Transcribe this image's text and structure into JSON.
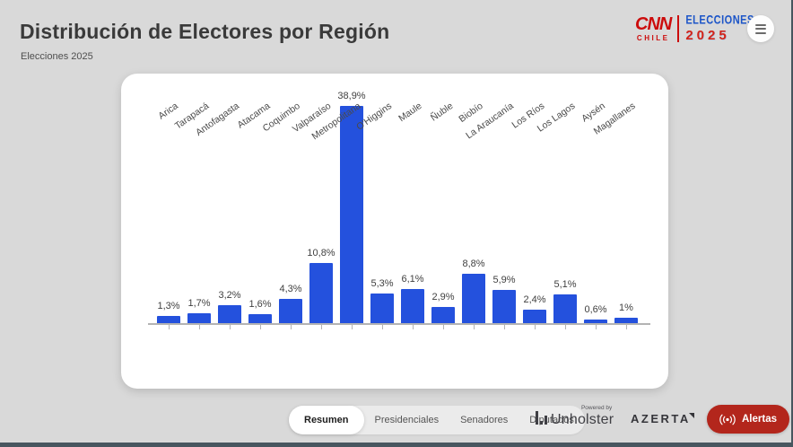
{
  "header": {
    "title": "Distribución de Electores por Región",
    "subtitle": "Elecciones 2025",
    "logo": {
      "cnn": "CNN",
      "chile": "CHILE",
      "elecciones": "ELECCIONES",
      "year": "2025",
      "cnn_red": "#cc0c0c",
      "elecciones_blue": "#1c55c8"
    }
  },
  "chart_data": {
    "type": "bar",
    "title": "Distribución de Electores por Región",
    "xlabel": "",
    "ylabel": "",
    "ylim": [
      0,
      40
    ],
    "grid": false,
    "legend": null,
    "bar_color": "#2451dd",
    "categories": [
      "Arica",
      "Tarapacá",
      "Antofagasta",
      "Atacama",
      "Coquimbo",
      "Valparaíso",
      "Metropolitana",
      "O'Higgins",
      "Maule",
      "Ñuble",
      "Biobío",
      "La Araucanía",
      "Los Ríos",
      "Los Lagos",
      "Aysén",
      "Magallanes"
    ],
    "values": [
      1.3,
      1.7,
      3.2,
      1.6,
      4.3,
      10.8,
      38.9,
      5.3,
      6.1,
      2.9,
      8.8,
      5.9,
      2.4,
      5.1,
      0.6,
      1.0
    ],
    "value_labels": [
      "1,3%",
      "1,7%",
      "3,2%",
      "1,6%",
      "4,3%",
      "10,8%",
      "38,9%",
      "5,3%",
      "6,1%",
      "2,9%",
      "8,8%",
      "5,9%",
      "2,4%",
      "5,1%",
      "0,6%",
      "1%"
    ]
  },
  "footer": {
    "tabs": [
      {
        "label": "Resumen",
        "active": true
      },
      {
        "label": "Presidenciales",
        "active": false
      },
      {
        "label": "Senadores",
        "active": false
      },
      {
        "label": "Diputados",
        "active": false
      }
    ],
    "powered_by": "Powered by",
    "unholster": "Unholster",
    "azerta": "AZERTA",
    "alerts_button": {
      "label": "Alertas",
      "color": "#b3261c",
      "icon": "broadcast-icon"
    }
  }
}
